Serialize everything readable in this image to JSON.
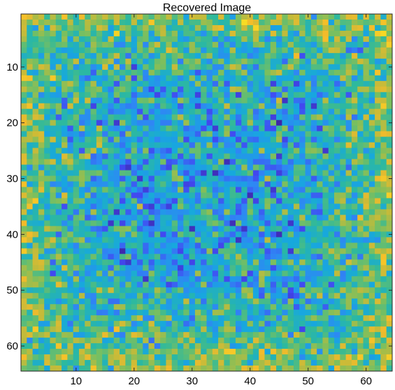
{
  "chart_data": {
    "type": "heatmap",
    "title": "Recovered Image",
    "xlabel": "",
    "ylabel": "",
    "xlim": [
      0.5,
      64.5
    ],
    "ylim": [
      0.5,
      64.5
    ],
    "y_direction": "reverse",
    "x_ticks": [
      10,
      20,
      30,
      40,
      50,
      60
    ],
    "y_ticks": [
      10,
      20,
      30,
      40,
      50,
      60
    ],
    "rows": 64,
    "cols": 64,
    "colormap": [
      "#3e26a8",
      "#4149f1",
      "#2f87f4",
      "#17a8de",
      "#2db99e",
      "#7abf5f",
      "#c1bb3b",
      "#f4bb2a",
      "#f8df24",
      "#f9fb14"
    ],
    "value_range": [
      0,
      1
    ],
    "pattern_note": "noisy 64x64 matrix; higher values (yellow) along borders and corners, lower values (blue) in centre",
    "seed": 20240601
  }
}
